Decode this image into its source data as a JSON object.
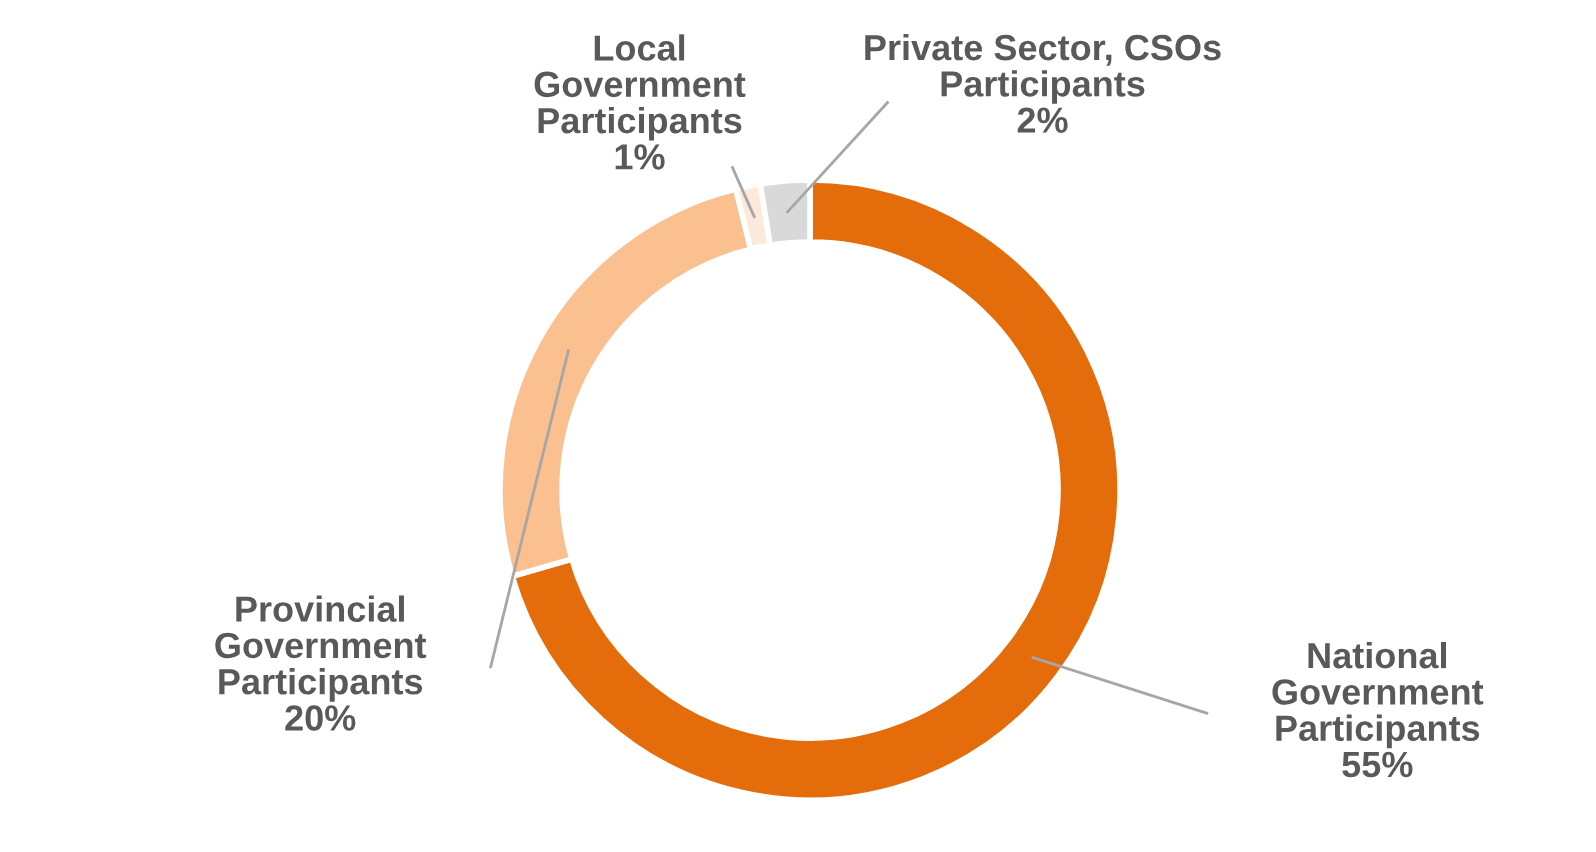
{
  "chart_data": {
    "type": "donut",
    "categories": [
      "National\nGovernment\nParticipants",
      "Provincial\nGovernment\nParticipants",
      "Local\nGovernment\nParticipants",
      "Private Sector, CSOs\nParticipants"
    ],
    "values": [
      55,
      20,
      1,
      2
    ],
    "value_labels": [
      "55%",
      "20%",
      "1%",
      "2%"
    ],
    "colors": [
      "#e46c0a",
      "#fac090",
      "#fde9d9",
      "#d9d9d9"
    ],
    "legend": false
  }
}
